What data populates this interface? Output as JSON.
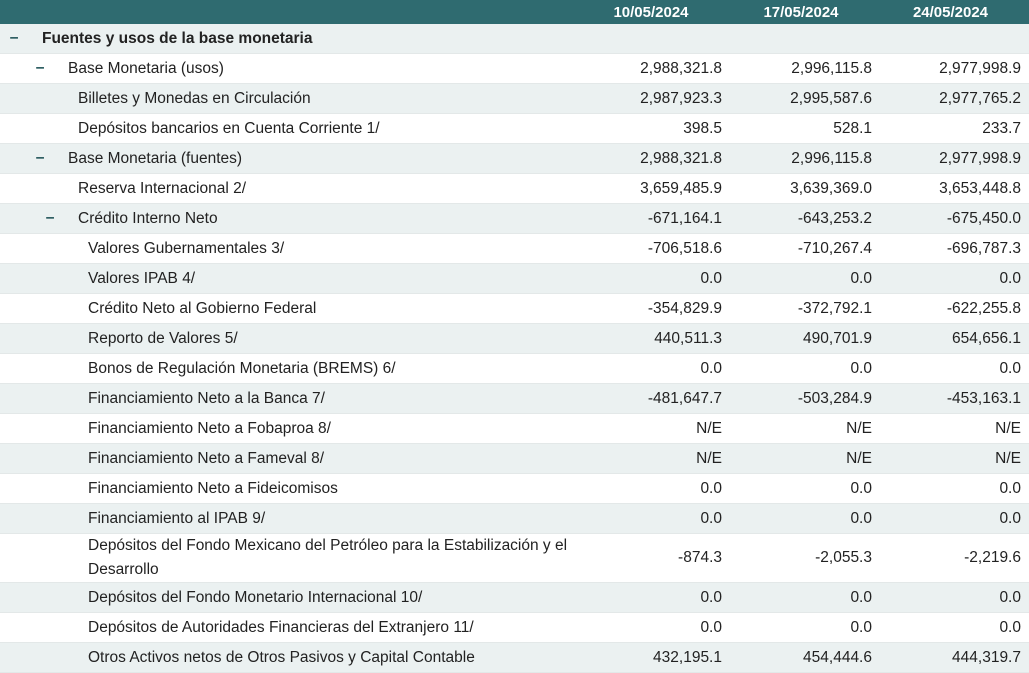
{
  "header": {
    "dates": [
      "10/05/2024",
      "17/05/2024",
      "24/05/2024"
    ]
  },
  "toggle_symbol": "−",
  "rows": [
    {
      "label": "Fuentes y usos de la base monetaria",
      "values": [
        "",
        "",
        ""
      ]
    },
    {
      "label": "Base Monetaria (usos)",
      "values": [
        "2,988,321.8",
        "2,996,115.8",
        "2,977,998.9"
      ]
    },
    {
      "label": "Billetes y Monedas en Circulación",
      "values": [
        "2,987,923.3",
        "2,995,587.6",
        "2,977,765.2"
      ]
    },
    {
      "label": "Depósitos bancarios en Cuenta Corriente 1/",
      "values": [
        "398.5",
        "528.1",
        "233.7"
      ]
    },
    {
      "label": "Base Monetaria (fuentes)",
      "values": [
        "2,988,321.8",
        "2,996,115.8",
        "2,977,998.9"
      ]
    },
    {
      "label": "Reserva Internacional 2/",
      "values": [
        "3,659,485.9",
        "3,639,369.0",
        "3,653,448.8"
      ]
    },
    {
      "label": "Crédito Interno Neto",
      "values": [
        "-671,164.1",
        "-643,253.2",
        "-675,450.0"
      ]
    },
    {
      "label": "Valores Gubernamentales 3/",
      "values": [
        "-706,518.6",
        "-710,267.4",
        "-696,787.3"
      ]
    },
    {
      "label": "Valores IPAB 4/",
      "values": [
        "0.0",
        "0.0",
        "0.0"
      ]
    },
    {
      "label": "Crédito Neto al Gobierno Federal",
      "values": [
        "-354,829.9",
        "-372,792.1",
        "-622,255.8"
      ]
    },
    {
      "label": "Reporto de Valores 5/",
      "values": [
        "440,511.3",
        "490,701.9",
        "654,656.1"
      ]
    },
    {
      "label": "Bonos de Regulación Monetaria (BREMS) 6/",
      "values": [
        "0.0",
        "0.0",
        "0.0"
      ]
    },
    {
      "label": "Financiamiento Neto a la Banca 7/",
      "values": [
        "-481,647.7",
        "-503,284.9",
        "-453,163.1"
      ]
    },
    {
      "label": "Financiamiento Neto a Fobaproa 8/",
      "values": [
        "N/E",
        "N/E",
        "N/E"
      ]
    },
    {
      "label": "Financiamiento Neto a Fameval 8/",
      "values": [
        "N/E",
        "N/E",
        "N/E"
      ]
    },
    {
      "label": "Financiamiento Neto a Fideicomisos",
      "values": [
        "0.0",
        "0.0",
        "0.0"
      ]
    },
    {
      "label": "Financiamiento al IPAB 9/",
      "values": [
        "0.0",
        "0.0",
        "0.0"
      ]
    },
    {
      "label": "Depósitos del Fondo Mexicano del Petróleo para la Estabilización y el Desarrollo",
      "values": [
        "-874.3",
        "-2,055.3",
        "-2,219.6"
      ]
    },
    {
      "label": "Depósitos del Fondo Monetario Internacional 10/",
      "values": [
        "0.0",
        "0.0",
        "0.0"
      ]
    },
    {
      "label": "Depósitos de Autoridades Financieras del Extranjero 11/",
      "values": [
        "0.0",
        "0.0",
        "0.0"
      ]
    },
    {
      "label": "Otros Activos netos de Otros Pasivos y Capital Contable",
      "values": [
        "432,195.1",
        "454,444.6",
        "444,319.7"
      ]
    }
  ]
}
